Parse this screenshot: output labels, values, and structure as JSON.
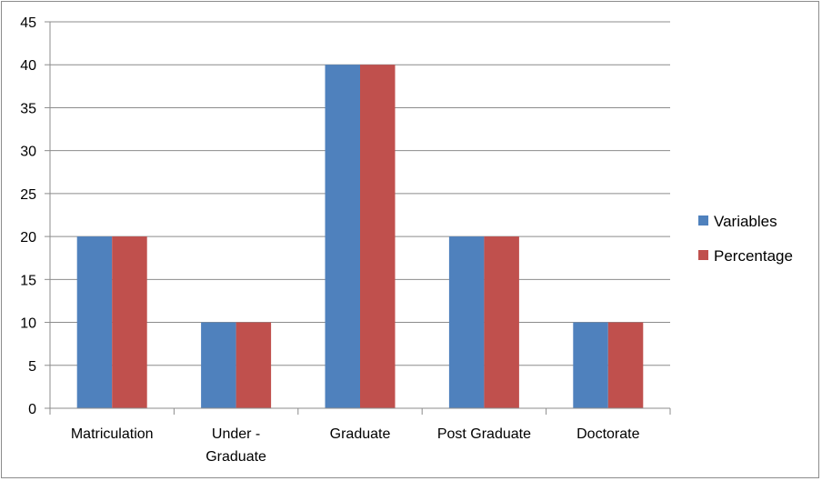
{
  "chart_data": {
    "type": "bar",
    "title": "",
    "xlabel": "",
    "ylabel": "",
    "categories": [
      [
        "Matriculation"
      ],
      [
        "Under -",
        "Graduate"
      ],
      [
        "Graduate"
      ],
      [
        "Post Graduate"
      ],
      [
        "Doctorate"
      ]
    ],
    "series": [
      {
        "name": "Variables",
        "values": [
          20,
          10,
          40,
          20,
          10
        ],
        "color": "#4f81bd"
      },
      {
        "name": "Percentage",
        "values": [
          20,
          10,
          40,
          20,
          10
        ],
        "color": "#c0504d"
      }
    ],
    "ylim": [
      0,
      45
    ],
    "yticks": [
      0,
      5,
      10,
      15,
      20,
      25,
      30,
      35,
      40,
      45
    ],
    "grid": true,
    "legend_position": "right"
  }
}
